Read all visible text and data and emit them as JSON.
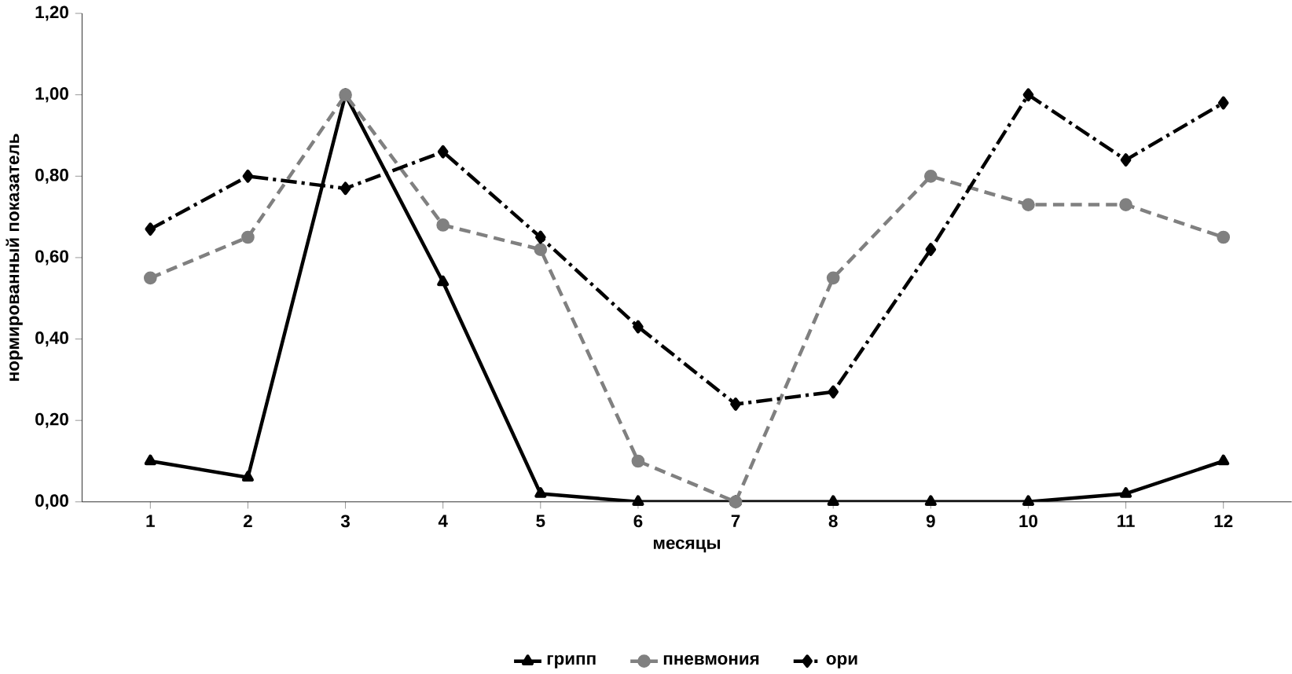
{
  "chart_data": {
    "type": "line",
    "xlabel": "месяцы",
    "ylabel": "нормированный показатель",
    "categories": [
      "1",
      "2",
      "3",
      "4",
      "5",
      "6",
      "7",
      "8",
      "9",
      "10",
      "11",
      "12"
    ],
    "series": [
      {
        "name": "грипп",
        "color": "#000000",
        "marker": "triangle",
        "line_style": "solid",
        "values": [
          0.1,
          0.06,
          1.0,
          0.54,
          0.02,
          0,
          0,
          0,
          0,
          0,
          0.02,
          0.1
        ]
      },
      {
        "name": "пневмония",
        "color": "#808080",
        "marker": "circle",
        "line_style": "dashed",
        "values": [
          0.55,
          0.65,
          1.0,
          0.68,
          0.62,
          0.1,
          0,
          0.55,
          0.8,
          0.73,
          0.73,
          0.65
        ]
      },
      {
        "name": "ори",
        "color": "#000000",
        "marker": "diamond",
        "line_style": "dashdot",
        "values": [
          0.67,
          0.8,
          0.77,
          0.86,
          0.65,
          0.43,
          0.24,
          0.27,
          0.62,
          1.0,
          0.84,
          0.98
        ]
      }
    ],
    "ylim": [
      0,
      1.2
    ],
    "yticks": [
      {
        "value": 0,
        "label": "0,00"
      },
      {
        "value": 0.2,
        "label": "0,20"
      },
      {
        "value": 0.4,
        "label": "0,40"
      },
      {
        "value": 0.6,
        "label": "0,60"
      },
      {
        "value": 0.8,
        "label": "0,80"
      },
      {
        "value": 1.0,
        "label": "1,00"
      },
      {
        "value": 1.2,
        "label": "1,20"
      }
    ],
    "grid": false,
    "legend": "bottom"
  }
}
